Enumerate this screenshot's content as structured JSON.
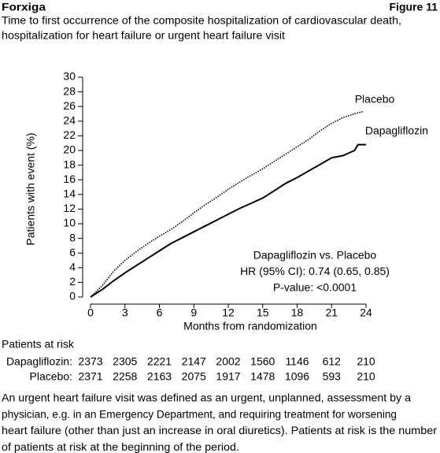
{
  "header": {
    "brand": "Forxiga",
    "figure": "Figure 11",
    "subtitle": [
      "Time to first occurrence of the composite hospitalization of cardiovascular death,",
      "hospitalization for heart failure or urgent heart failure visit"
    ]
  },
  "chart_data": {
    "type": "line",
    "y_label": "Patients with event (%)",
    "x_label": "Months from randomization",
    "xlim": [
      0,
      24
    ],
    "xticks": [
      0,
      3,
      6,
      9,
      12,
      15,
      18,
      21,
      24
    ],
    "ylim": [
      0,
      30
    ],
    "yticks": [
      0,
      2,
      4,
      6,
      8,
      10,
      12,
      14,
      16,
      18,
      20,
      22,
      24,
      26,
      28,
      30
    ],
    "series": [
      {
        "name": "Placebo",
        "color": "#000000",
        "dashed": true,
        "x": [
          0,
          1,
          2,
          3,
          4,
          5,
          6,
          7,
          8,
          9,
          10,
          11,
          12,
          13,
          14,
          15,
          16,
          17,
          18,
          19,
          20,
          21,
          22,
          23,
          23.7
        ],
        "values": [
          0,
          1.5,
          3.5,
          5,
          6.2,
          7.3,
          8.3,
          9.2,
          10.3,
          11.5,
          12.6,
          13.6,
          14.7,
          15.7,
          16.6,
          17.5,
          18.5,
          19.5,
          20.5,
          21.5,
          22.7,
          23.7,
          24.5,
          25,
          25.3
        ]
      },
      {
        "name": "Dapagliflozin",
        "color": "#000000",
        "dashed": false,
        "x": [
          0,
          1,
          2,
          3,
          4,
          5,
          6,
          7,
          8,
          9,
          10,
          11,
          12,
          13,
          14,
          15,
          16,
          17,
          18,
          19,
          20,
          21,
          22,
          23,
          23.3,
          24
        ],
        "values": [
          0,
          1,
          2.2,
          3.3,
          4.3,
          5.3,
          6.3,
          7.3,
          8.1,
          8.9,
          9.7,
          10.5,
          11.3,
          12.1,
          12.8,
          13.5,
          14.5,
          15.5,
          16.3,
          17.2,
          18.1,
          19,
          19.3,
          20,
          20.8,
          20.8
        ]
      }
    ],
    "annotations": [
      "Dapagliflozin vs. Placebo",
      "HR (95% CI): 0.74 (0.65, 0.85)",
      "P-value: <0.0001"
    ]
  },
  "risk_table": {
    "title": "Patients at risk",
    "rows": [
      {
        "label": "Dapagliflozin:",
        "values": [
          2373,
          2305,
          2221,
          2147,
          2002,
          1560,
          1146,
          612,
          210
        ]
      },
      {
        "label": "Placebo:",
        "values": [
          2371,
          2258,
          2163,
          2075,
          1917,
          1478,
          1096,
          593,
          210
        ]
      }
    ]
  },
  "footnote": [
    "An urgent heart failure visit was defined as an urgent, unplanned, assessment by a",
    "physician, e.g. in an Emergency Department, and requiring treatment for worsening",
    "heart failure (other than just an increase in oral diuretics). Patients at risk is the number",
    "of patients at risk at the beginning of the period."
  ]
}
